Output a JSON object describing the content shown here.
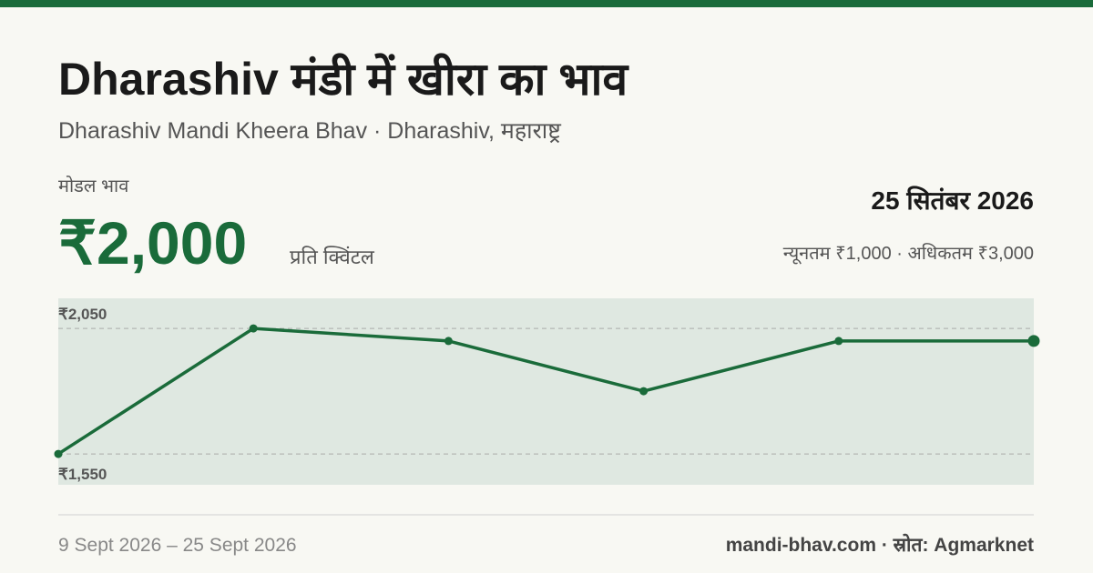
{
  "header": {
    "title": "Dharashiv मंडी में खीरा का भाव",
    "subtitle": "Dharashiv Mandi Kheera Bhav · Dharashiv, महाराष्ट्र"
  },
  "price": {
    "label": "मोडल भाव",
    "value": "₹2,000",
    "unit": "प्रति क्विंटल",
    "date": "25 सितंबर 2026",
    "range": "न्यूनतम ₹1,000 · अधिकतम ₹3,000"
  },
  "chart_data": {
    "type": "line",
    "categories": [
      null,
      null,
      null,
      null,
      null,
      null
    ],
    "series": [
      {
        "color": "#1a6b3a",
        "values": [
          1550,
          2050,
          2000,
          1800,
          2000,
          2000
        ]
      }
    ],
    "ylim": [
      1427,
      2170
    ],
    "yticks": [
      {
        "value": 2050,
        "label": "₹2,050"
      },
      {
        "value": 1550,
        "label": "₹1,550"
      }
    ],
    "grid": true
  },
  "footer": {
    "period": "9 Sept 2026 – 25 Sept 2026",
    "source": "mandi-bhav.com · स्रोत: Agmarknet"
  }
}
